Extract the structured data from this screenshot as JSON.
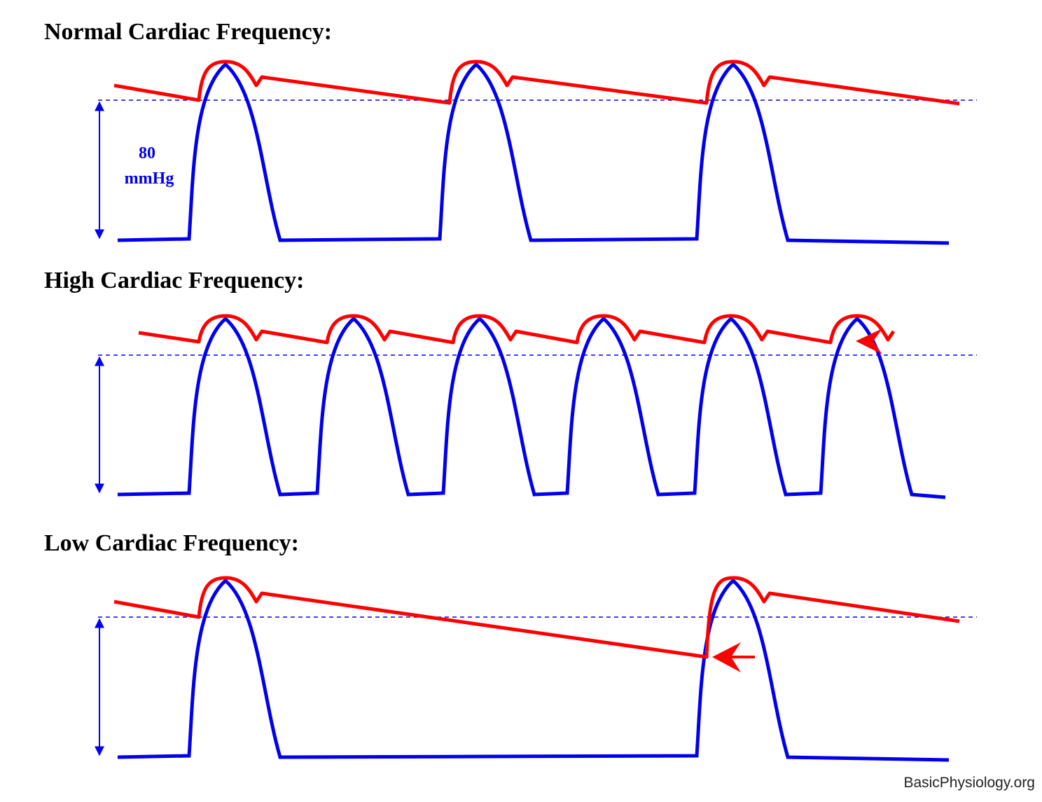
{
  "panels": [
    {
      "title": "Normal Cardiac Frequency:"
    },
    {
      "title": "High Cardiac Frequency:"
    },
    {
      "title": "Low Cardiac Frequency:"
    }
  ],
  "pressure_label": {
    "value": "80",
    "unit": "mmHg"
  },
  "footer": "BasicPhysiology.org"
}
